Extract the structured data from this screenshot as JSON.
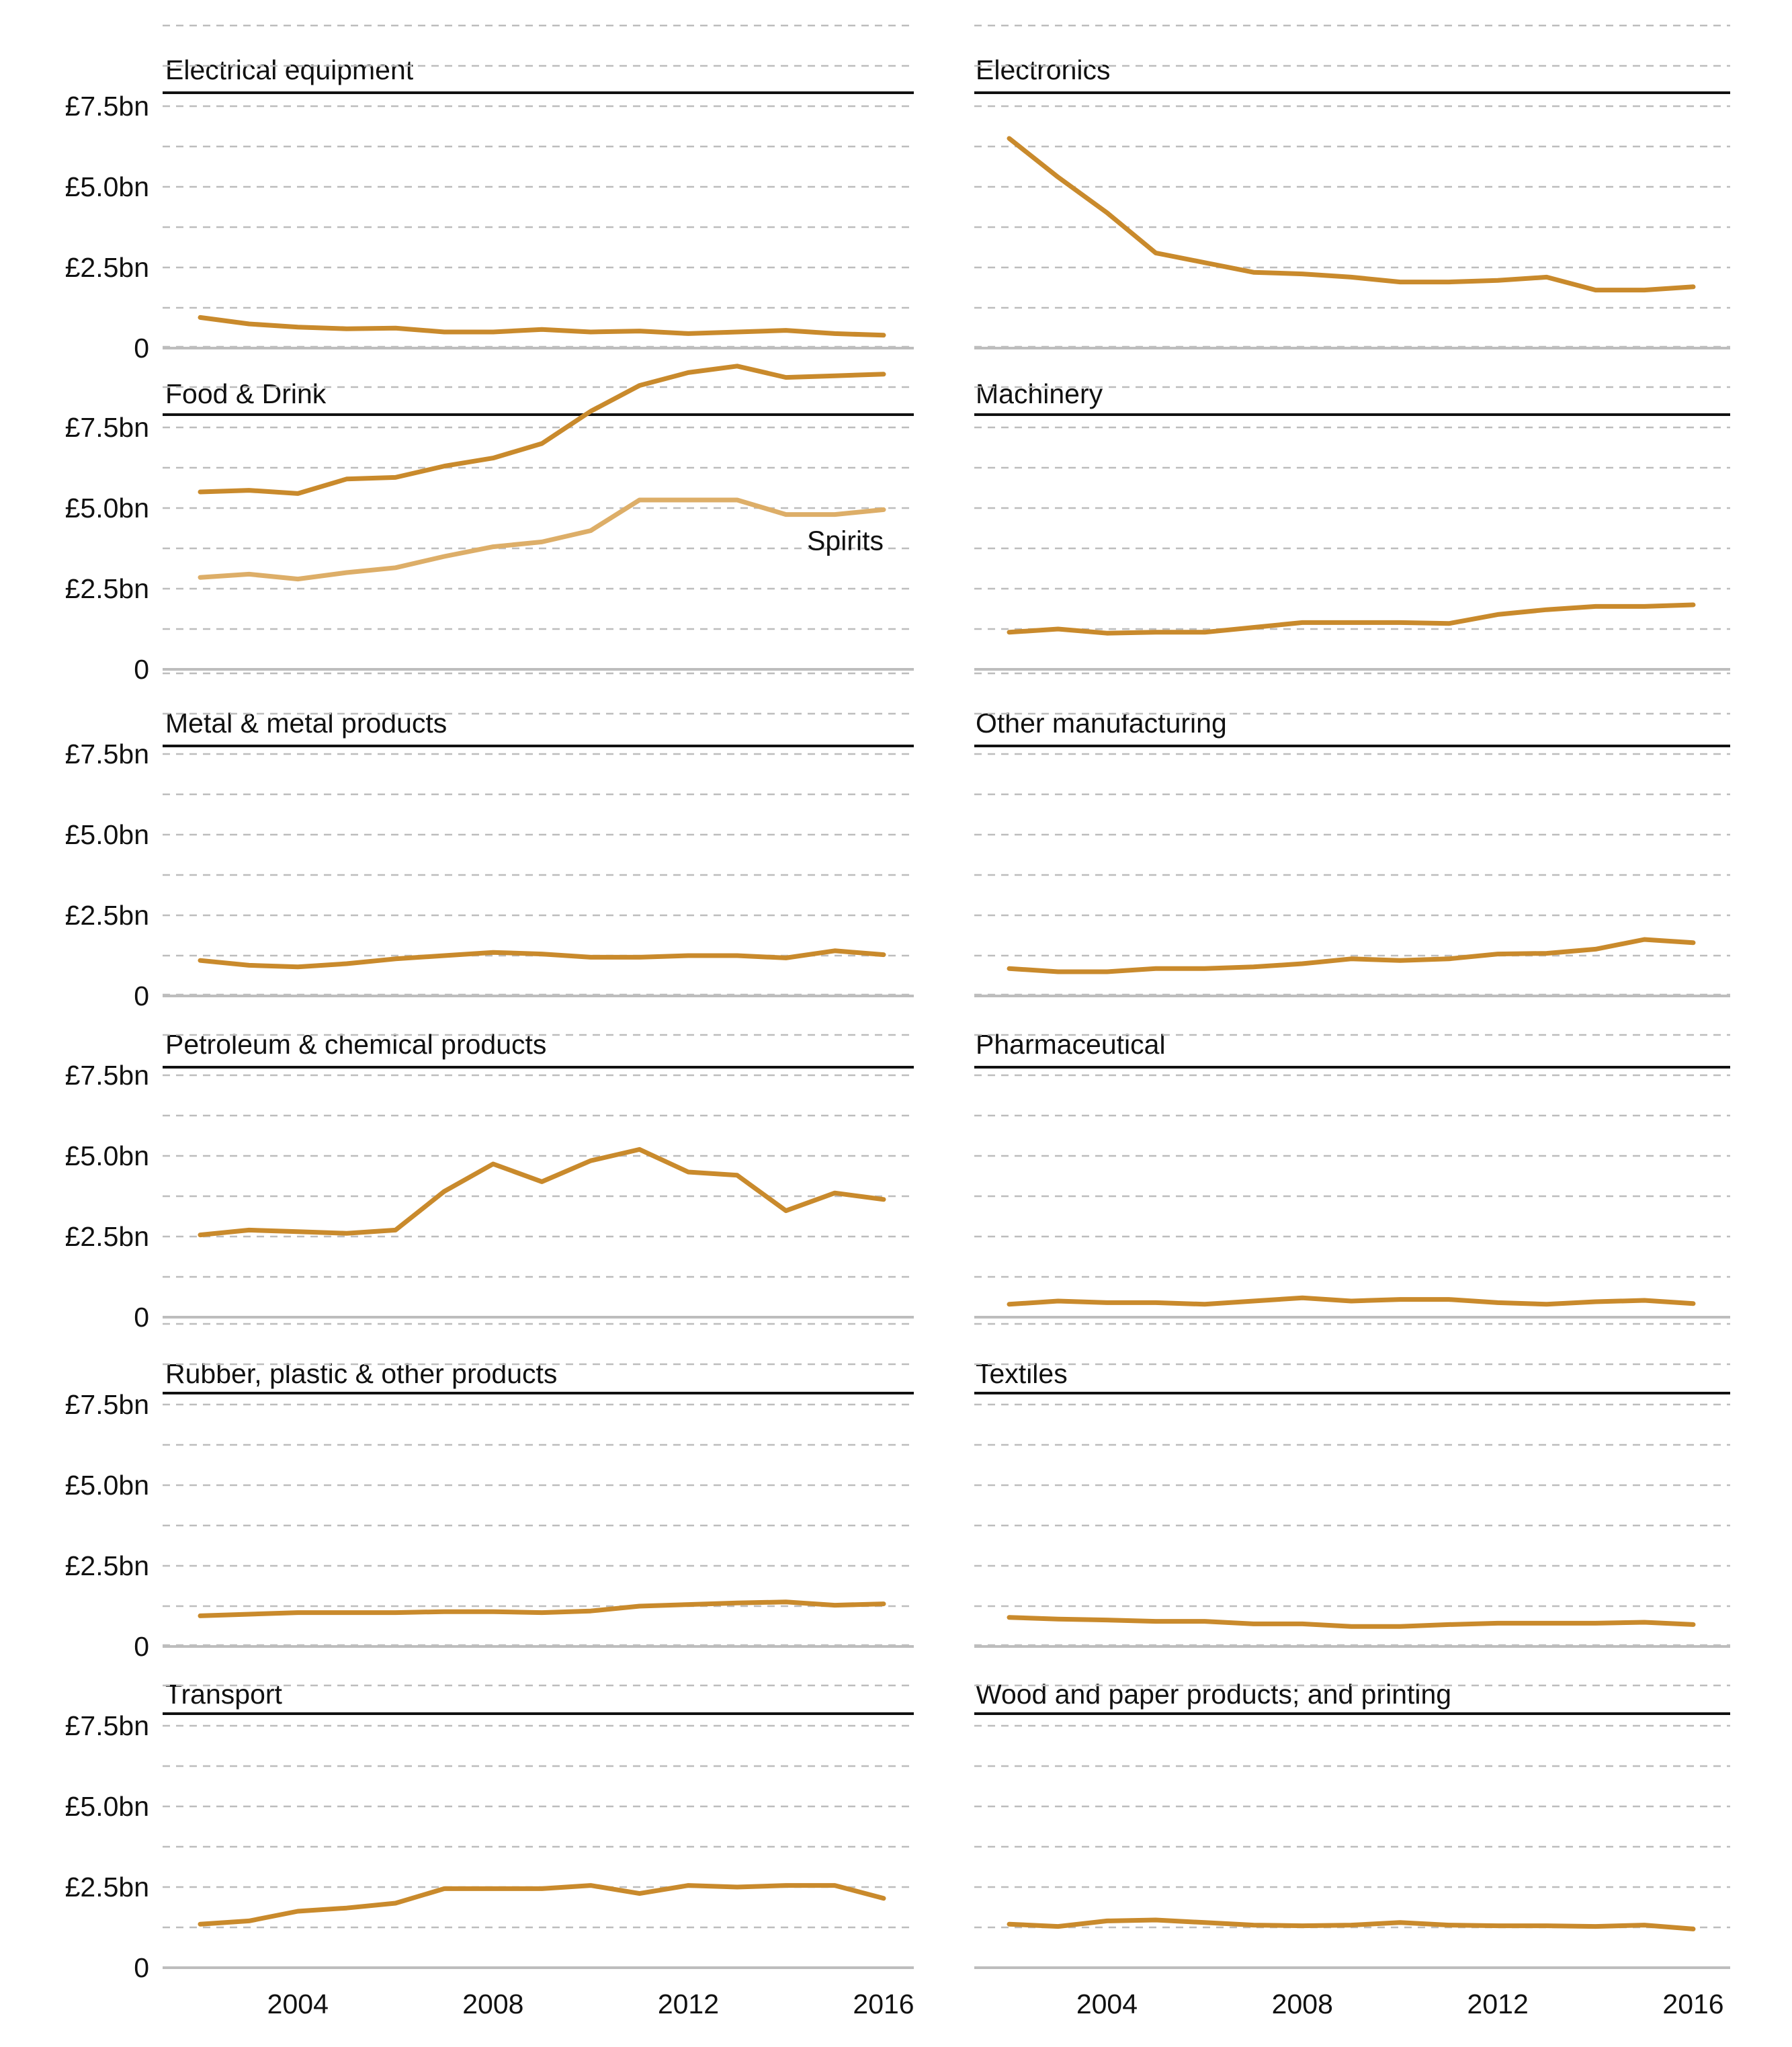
{
  "colors": {
    "main": "#c98a2c",
    "spirits": "#ddae68",
    "grid": "#bdbdbd",
    "text": "#111111"
  },
  "chart_data": [
    {
      "type": "line",
      "title": "Electrical equipment",
      "x": [
        2002,
        2003,
        2004,
        2005,
        2006,
        2007,
        2008,
        2009,
        2010,
        2011,
        2012,
        2013,
        2014,
        2015,
        2016
      ],
      "ylim": [
        0,
        10
      ],
      "yticks": [
        "0",
        "£2.5bn",
        "£5.0bn",
        "£7.5bn"
      ],
      "xticks": [],
      "series": [
        {
          "values": [
            0.95,
            0.75,
            0.65,
            0.6,
            0.62,
            0.5,
            0.5,
            0.58,
            0.5,
            0.53,
            0.45,
            0.5,
            0.55,
            0.45,
            0.4
          ]
        }
      ]
    },
    {
      "type": "line",
      "title": "Electronics",
      "x": [
        2002,
        2003,
        2004,
        2005,
        2006,
        2007,
        2008,
        2009,
        2010,
        2011,
        2012,
        2013,
        2014,
        2015,
        2016
      ],
      "ylim": [
        0,
        10
      ],
      "yticks": [],
      "xticks": [],
      "series": [
        {
          "values": [
            6.5,
            5.3,
            4.2,
            2.95,
            2.65,
            2.35,
            2.3,
            2.2,
            2.05,
            2.05,
            2.1,
            2.2,
            1.8,
            1.8,
            1.9
          ]
        }
      ]
    },
    {
      "type": "line",
      "title": "Food & Drink",
      "x": [
        2002,
        2003,
        2004,
        2005,
        2006,
        2007,
        2008,
        2009,
        2010,
        2011,
        2012,
        2013,
        2014,
        2015,
        2016
      ],
      "ylim": [
        0,
        10
      ],
      "yticks": [
        "0",
        "£2.5bn",
        "£5.0bn",
        "£7.5bn"
      ],
      "xticks": [],
      "series": [
        {
          "values": [
            5.5,
            5.55,
            5.45,
            5.9,
            5.95,
            6.3,
            6.55,
            7.0,
            8.0,
            8.8,
            9.2,
            9.4,
            9.05,
            9.1,
            9.15
          ]
        },
        {
          "name": "Spirits",
          "values": [
            2.85,
            2.95,
            2.8,
            3.0,
            3.15,
            3.5,
            3.8,
            3.95,
            4.3,
            5.25,
            5.25,
            5.25,
            4.8,
            4.8,
            4.95
          ]
        }
      ]
    },
    {
      "type": "line",
      "title": "Machinery",
      "x": [
        2002,
        2003,
        2004,
        2005,
        2006,
        2007,
        2008,
        2009,
        2010,
        2011,
        2012,
        2013,
        2014,
        2015,
        2016
      ],
      "ylim": [
        0,
        10
      ],
      "yticks": [],
      "xticks": [],
      "series": [
        {
          "values": [
            1.15,
            1.25,
            1.12,
            1.15,
            1.15,
            1.3,
            1.45,
            1.45,
            1.45,
            1.42,
            1.7,
            1.85,
            1.95,
            1.95,
            2.0
          ]
        }
      ]
    },
    {
      "type": "line",
      "title": "Metal & metal products",
      "x": [
        2002,
        2003,
        2004,
        2005,
        2006,
        2007,
        2008,
        2009,
        2010,
        2011,
        2012,
        2013,
        2014,
        2015,
        2016
      ],
      "ylim": [
        0,
        10
      ],
      "yticks": [
        "0",
        "£2.5bn",
        "£5.0bn",
        "£7.5bn"
      ],
      "xticks": [],
      "series": [
        {
          "values": [
            1.1,
            0.95,
            0.9,
            1.0,
            1.15,
            1.25,
            1.35,
            1.3,
            1.2,
            1.2,
            1.25,
            1.25,
            1.18,
            1.4,
            1.28
          ]
        }
      ]
    },
    {
      "type": "line",
      "title": "Other manufacturing",
      "x": [
        2002,
        2003,
        2004,
        2005,
        2006,
        2007,
        2008,
        2009,
        2010,
        2011,
        2012,
        2013,
        2014,
        2015,
        2016
      ],
      "ylim": [
        0,
        10
      ],
      "yticks": [],
      "xticks": [],
      "series": [
        {
          "values": [
            0.85,
            0.75,
            0.75,
            0.85,
            0.85,
            0.9,
            1.0,
            1.15,
            1.1,
            1.15,
            1.3,
            1.32,
            1.45,
            1.75,
            1.65
          ]
        }
      ]
    },
    {
      "type": "line",
      "title": "Petroleum & chemical products",
      "x": [
        2002,
        2003,
        2004,
        2005,
        2006,
        2007,
        2008,
        2009,
        2010,
        2011,
        2012,
        2013,
        2014,
        2015,
        2016
      ],
      "ylim": [
        0,
        10
      ],
      "yticks": [
        "0",
        "£2.5bn",
        "£5.0bn",
        "£7.5bn"
      ],
      "xticks": [],
      "series": [
        {
          "values": [
            2.55,
            2.7,
            2.65,
            2.6,
            2.7,
            3.9,
            4.75,
            4.2,
            4.85,
            5.2,
            4.5,
            4.4,
            3.3,
            3.85,
            3.65
          ]
        }
      ]
    },
    {
      "type": "line",
      "title": "Pharmaceutical",
      "x": [
        2002,
        2003,
        2004,
        2005,
        2006,
        2007,
        2008,
        2009,
        2010,
        2011,
        2012,
        2013,
        2014,
        2015,
        2016
      ],
      "ylim": [
        0,
        10
      ],
      "yticks": [],
      "xticks": [],
      "series": [
        {
          "values": [
            0.4,
            0.5,
            0.45,
            0.45,
            0.4,
            0.5,
            0.6,
            0.5,
            0.55,
            0.55,
            0.45,
            0.4,
            0.48,
            0.52,
            0.42
          ]
        }
      ]
    },
    {
      "type": "line",
      "title": "Rubber, plastic & other products",
      "x": [
        2002,
        2003,
        2004,
        2005,
        2006,
        2007,
        2008,
        2009,
        2010,
        2011,
        2012,
        2013,
        2014,
        2015,
        2016
      ],
      "ylim": [
        0,
        10
      ],
      "yticks": [
        "0",
        "£2.5bn",
        "£5.0bn",
        "£7.5bn"
      ],
      "xticks": [],
      "series": [
        {
          "values": [
            0.95,
            1.0,
            1.05,
            1.05,
            1.05,
            1.08,
            1.08,
            1.05,
            1.1,
            1.25,
            1.3,
            1.35,
            1.38,
            1.28,
            1.32
          ]
        }
      ]
    },
    {
      "type": "line",
      "title": "Textiles",
      "x": [
        2002,
        2003,
        2004,
        2005,
        2006,
        2007,
        2008,
        2009,
        2010,
        2011,
        2012,
        2013,
        2014,
        2015,
        2016
      ],
      "ylim": [
        0,
        10
      ],
      "yticks": [],
      "xticks": [],
      "series": [
        {
          "values": [
            0.9,
            0.85,
            0.82,
            0.78,
            0.78,
            0.7,
            0.7,
            0.62,
            0.62,
            0.68,
            0.72,
            0.72,
            0.72,
            0.75,
            0.68
          ]
        }
      ]
    },
    {
      "type": "line",
      "title": "Transport",
      "x": [
        2002,
        2003,
        2004,
        2005,
        2006,
        2007,
        2008,
        2009,
        2010,
        2011,
        2012,
        2013,
        2014,
        2015,
        2016
      ],
      "ylim": [
        0,
        10
      ],
      "yticks": [
        "0",
        "£2.5bn",
        "£5.0bn",
        "£7.5bn"
      ],
      "xticks": [
        "2004",
        "2008",
        "2012",
        "2016"
      ],
      "series": [
        {
          "values": [
            1.35,
            1.45,
            1.75,
            1.85,
            2.0,
            2.45,
            2.45,
            2.45,
            2.55,
            2.3,
            2.55,
            2.5,
            2.55,
            2.55,
            2.15
          ]
        }
      ]
    },
    {
      "type": "line",
      "title": "Wood and paper products; and printing",
      "x": [
        2002,
        2003,
        2004,
        2005,
        2006,
        2007,
        2008,
        2009,
        2010,
        2011,
        2012,
        2013,
        2014,
        2015,
        2016
      ],
      "ylim": [
        0,
        10
      ],
      "yticks": [],
      "xticks": [
        "2004",
        "2008",
        "2012",
        "2016"
      ],
      "series": [
        {
          "values": [
            1.35,
            1.28,
            1.45,
            1.48,
            1.4,
            1.32,
            1.3,
            1.32,
            1.4,
            1.32,
            1.3,
            1.3,
            1.28,
            1.32,
            1.2
          ]
        }
      ]
    }
  ]
}
